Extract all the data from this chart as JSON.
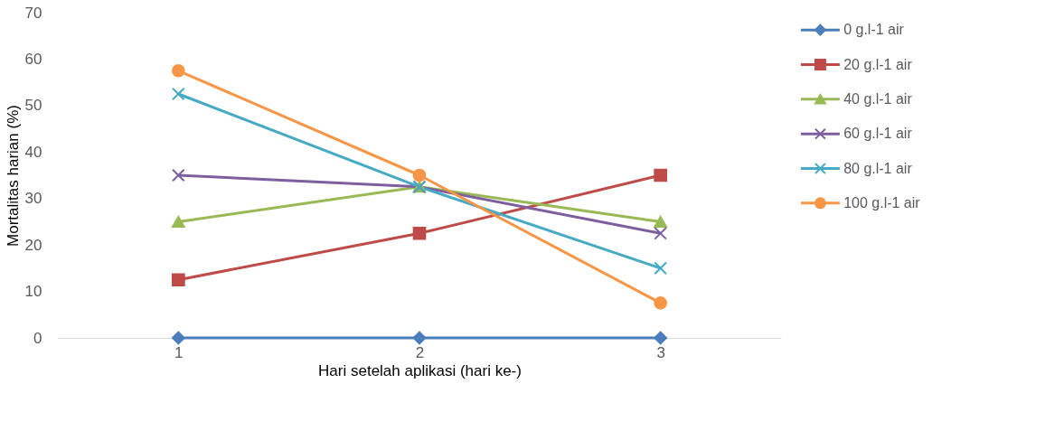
{
  "chart_data": {
    "type": "line",
    "xlabel": "Hari setelah aplikasi (hari ke-)",
    "ylabel": "Mortalitas harian (%)",
    "categories": [
      "1",
      "2",
      "3"
    ],
    "series": [
      {
        "name": "0 g.l-1 air",
        "color": "#4a7ebb",
        "marker": "diamond",
        "values": [
          0,
          0,
          0
        ]
      },
      {
        "name": "20 g.l-1 air",
        "color": "#be4b48",
        "marker": "square",
        "values": [
          12.5,
          22.5,
          35
        ]
      },
      {
        "name": "40 g.l-1 air",
        "color": "#98b954",
        "marker": "triangle",
        "values": [
          25,
          32.5,
          25
        ]
      },
      {
        "name": "60 g.l-1 air",
        "color": "#7d5fa0",
        "marker": "cross",
        "values": [
          35,
          32.5,
          22.5
        ]
      },
      {
        "name": "80 g.l-1 air",
        "color": "#46aac5",
        "marker": "cross",
        "values": [
          52.5,
          32.5,
          15
        ]
      },
      {
        "name": "100 g.l-1 air",
        "color": "#f79646",
        "marker": "circle",
        "values": [
          57.5,
          35,
          7.5
        ]
      }
    ],
    "ylim": [
      0,
      70
    ],
    "yticks": [
      0,
      10,
      20,
      30,
      40,
      50,
      60,
      70
    ],
    "grid": false,
    "legend": "right",
    "line_style": "solid"
  }
}
